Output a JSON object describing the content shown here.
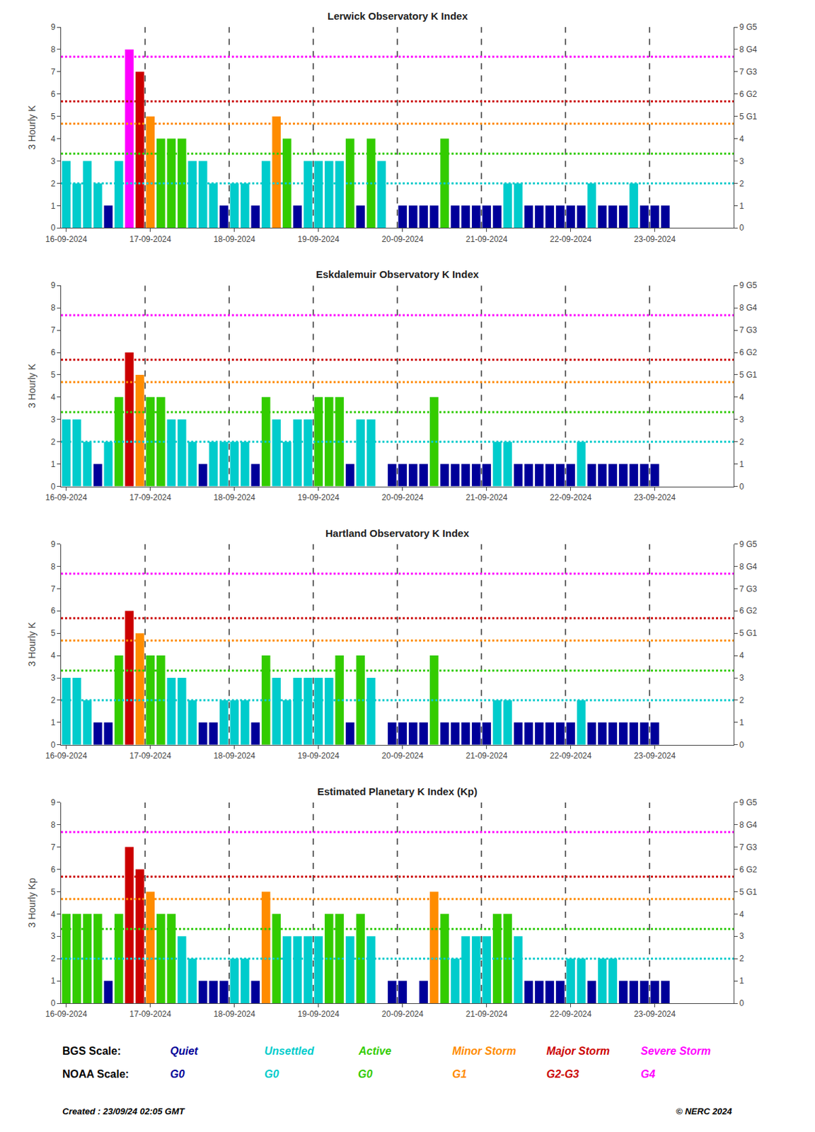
{
  "chart_data": [
    {
      "type": "bar",
      "title": "Lerwick Observatory K Index",
      "ylabel": "3 Hourly K",
      "categories": [
        "16-09-2024",
        null,
        null,
        null,
        null,
        null,
        null,
        null,
        "17-09-2024",
        null,
        null,
        null,
        null,
        null,
        null,
        null,
        "18-09-2024",
        null,
        null,
        null,
        null,
        null,
        null,
        null,
        "19-09-2024",
        null,
        null,
        null,
        null,
        null,
        null,
        null,
        "20-09-2024",
        null,
        null,
        null,
        null,
        null,
        null,
        null,
        "21-09-2024",
        null,
        null,
        null,
        null,
        null,
        null,
        null,
        "22-09-2024",
        null,
        null,
        null,
        null,
        null,
        null,
        null,
        "23-09-2024",
        null,
        null,
        null,
        null,
        null,
        null,
        null
      ],
      "values": [
        3,
        2,
        3,
        2,
        1,
        3,
        8,
        7,
        5,
        4,
        4,
        4,
        3,
        3,
        2,
        1,
        2,
        2,
        1,
        3,
        5,
        4,
        1,
        3,
        3,
        3,
        3,
        4,
        1,
        4,
        3,
        0,
        1,
        1,
        1,
        1,
        4,
        1,
        1,
        1,
        1,
        1,
        2,
        2,
        1,
        1,
        1,
        1,
        1,
        1,
        2,
        1,
        1,
        1,
        2,
        1,
        1,
        1,
        0,
        0,
        0,
        0,
        0,
        0
      ],
      "colors": [
        "#00CCCC",
        "#00CCCC",
        "#00CCCC",
        "#00CCCC",
        "#000099",
        "#00CCCC",
        "#FF00FF",
        "#CC0000",
        "#FF8C00",
        "#33CC00",
        "#33CC00",
        "#33CC00",
        "#00CCCC",
        "#00CCCC",
        "#00CCCC",
        "#000099",
        "#00CCCC",
        "#00CCCC",
        "#000099",
        "#00CCCC",
        "#FF8C00",
        "#33CC00",
        "#000099",
        "#00CCCC",
        "#00CCCC",
        "#00CCCC",
        "#00CCCC",
        "#33CC00",
        "#000099",
        "#33CC00",
        "#00CCCC",
        "#000099",
        "#000099",
        "#000099",
        "#000099",
        "#000099",
        "#33CC00",
        "#000099",
        "#000099",
        "#000099",
        "#000099",
        "#000099",
        "#00CCCC",
        "#00CCCC",
        "#000099",
        "#000099",
        "#000099",
        "#000099",
        "#000099",
        "#000099",
        "#00CCCC",
        "#000099",
        "#000099",
        "#000099",
        "#00CCCC",
        "#000099",
        "#000099",
        "#000099",
        "#000099",
        "#000099",
        "#000099",
        "#000099",
        "#000099",
        "#000099"
      ],
      "ylim": [
        0,
        9
      ],
      "yticks": [
        0,
        1,
        2,
        3,
        4,
        5,
        6,
        7,
        8,
        9
      ],
      "y2lim": [
        0,
        9
      ],
      "y2ticks": [
        0,
        1,
        2,
        3,
        4,
        {
          "value": 5,
          "label": "5 G1"
        },
        {
          "value": 6,
          "label": "6 G2"
        },
        {
          "value": 7,
          "label": "7 G3"
        },
        {
          "value": 8,
          "label": "8 G4"
        },
        {
          "value": 9,
          "label": "9 G5"
        }
      ],
      "hlines": [
        {
          "value": 7.67,
          "color": "#FF00FF"
        },
        {
          "value": 5.67,
          "color": "#CC0000"
        },
        {
          "value": 4.67,
          "color": "#FF8C00"
        },
        {
          "value": 3.33,
          "color": "#33CC00"
        },
        {
          "value": 2.0,
          "color": "#00CCCC"
        }
      ],
      "grid": false
    },
    {
      "type": "bar",
      "title": "Eskdalemuir Observatory K Index",
      "ylabel": "3 Hourly K",
      "categories": [
        "16-09-2024",
        null,
        null,
        null,
        null,
        null,
        null,
        null,
        "17-09-2024",
        null,
        null,
        null,
        null,
        null,
        null,
        null,
        "18-09-2024",
        null,
        null,
        null,
        null,
        null,
        null,
        null,
        "19-09-2024",
        null,
        null,
        null,
        null,
        null,
        null,
        null,
        "20-09-2024",
        null,
        null,
        null,
        null,
        null,
        null,
        null,
        "21-09-2024",
        null,
        null,
        null,
        null,
        null,
        null,
        null,
        "22-09-2024",
        null,
        null,
        null,
        null,
        null,
        null,
        null,
        "23-09-2024",
        null,
        null,
        null,
        null,
        null,
        null,
        null
      ],
      "values": [
        3,
        3,
        2,
        1,
        2,
        4,
        6,
        5,
        4,
        4,
        3,
        3,
        2,
        1,
        2,
        2,
        2,
        2,
        1,
        4,
        3,
        2,
        3,
        3,
        4,
        4,
        4,
        1,
        3,
        3,
        0,
        1,
        1,
        1,
        1,
        4,
        1,
        1,
        1,
        1,
        1,
        2,
        2,
        1,
        1,
        1,
        1,
        1,
        1,
        2,
        1,
        1,
        1,
        1,
        1,
        1,
        1,
        0,
        0,
        0,
        0,
        0,
        0,
        0
      ],
      "colors": [
        "#00CCCC",
        "#00CCCC",
        "#00CCCC",
        "#000099",
        "#00CCCC",
        "#33CC00",
        "#CC0000",
        "#FF8C00",
        "#33CC00",
        "#33CC00",
        "#00CCCC",
        "#00CCCC",
        "#00CCCC",
        "#000099",
        "#00CCCC",
        "#00CCCC",
        "#00CCCC",
        "#00CCCC",
        "#000099",
        "#33CC00",
        "#00CCCC",
        "#00CCCC",
        "#00CCCC",
        "#00CCCC",
        "#33CC00",
        "#33CC00",
        "#33CC00",
        "#000099",
        "#00CCCC",
        "#00CCCC",
        "#000099",
        "#000099",
        "#000099",
        "#000099",
        "#000099",
        "#33CC00",
        "#000099",
        "#000099",
        "#000099",
        "#000099",
        "#000099",
        "#00CCCC",
        "#00CCCC",
        "#000099",
        "#000099",
        "#000099",
        "#000099",
        "#000099",
        "#000099",
        "#00CCCC",
        "#000099",
        "#000099",
        "#000099",
        "#000099",
        "#000099",
        "#000099",
        "#000099",
        "#000099",
        "#000099",
        "#000099",
        "#000099",
        "#000099",
        "#000099",
        "#000099"
      ],
      "ylim": [
        0,
        9
      ],
      "yticks": [
        0,
        1,
        2,
        3,
        4,
        5,
        6,
        7,
        8,
        9
      ],
      "y2lim": [
        0,
        9
      ],
      "y2ticks": [
        0,
        1,
        2,
        3,
        4,
        {
          "value": 5,
          "label": "5 G1"
        },
        {
          "value": 6,
          "label": "6 G2"
        },
        {
          "value": 7,
          "label": "7 G3"
        },
        {
          "value": 8,
          "label": "8 G4"
        },
        {
          "value": 9,
          "label": "9 G5"
        }
      ],
      "hlines": [
        {
          "value": 7.67,
          "color": "#FF00FF"
        },
        {
          "value": 5.67,
          "color": "#CC0000"
        },
        {
          "value": 4.67,
          "color": "#FF8C00"
        },
        {
          "value": 3.33,
          "color": "#33CC00"
        },
        {
          "value": 2.0,
          "color": "#00CCCC"
        }
      ],
      "grid": false
    },
    {
      "type": "bar",
      "title": "Hartland Observatory K Index",
      "ylabel": "3 Hourly K",
      "categories": [
        "16-09-2024",
        null,
        null,
        null,
        null,
        null,
        null,
        null,
        "17-09-2024",
        null,
        null,
        null,
        null,
        null,
        null,
        null,
        "18-09-2024",
        null,
        null,
        null,
        null,
        null,
        null,
        null,
        "19-09-2024",
        null,
        null,
        null,
        null,
        null,
        null,
        null,
        "20-09-2024",
        null,
        null,
        null,
        null,
        null,
        null,
        null,
        "21-09-2024",
        null,
        null,
        null,
        null,
        null,
        null,
        null,
        "22-09-2024",
        null,
        null,
        null,
        null,
        null,
        null,
        null,
        "23-09-2024",
        null,
        null,
        null,
        null,
        null,
        null,
        null
      ],
      "values": [
        3,
        3,
        2,
        1,
        1,
        4,
        6,
        5,
        4,
        4,
        3,
        3,
        2,
        1,
        1,
        2,
        2,
        2,
        1,
        4,
        3,
        2,
        3,
        3,
        3,
        3,
        4,
        1,
        4,
        3,
        0,
        1,
        1,
        1,
        1,
        4,
        1,
        1,
        1,
        1,
        1,
        2,
        2,
        1,
        1,
        1,
        1,
        1,
        1,
        2,
        1,
        1,
        1,
        1,
        1,
        1,
        1,
        0,
        0,
        0,
        0,
        0,
        0,
        0
      ],
      "colors": [
        "#00CCCC",
        "#00CCCC",
        "#00CCCC",
        "#000099",
        "#000099",
        "#33CC00",
        "#CC0000",
        "#FF8C00",
        "#33CC00",
        "#33CC00",
        "#00CCCC",
        "#00CCCC",
        "#00CCCC",
        "#000099",
        "#000099",
        "#00CCCC",
        "#00CCCC",
        "#00CCCC",
        "#000099",
        "#33CC00",
        "#00CCCC",
        "#00CCCC",
        "#00CCCC",
        "#00CCCC",
        "#00CCCC",
        "#00CCCC",
        "#33CC00",
        "#000099",
        "#33CC00",
        "#00CCCC",
        "#000099",
        "#000099",
        "#000099",
        "#000099",
        "#000099",
        "#33CC00",
        "#000099",
        "#000099",
        "#000099",
        "#000099",
        "#000099",
        "#00CCCC",
        "#00CCCC",
        "#000099",
        "#000099",
        "#000099",
        "#000099",
        "#000099",
        "#000099",
        "#00CCCC",
        "#000099",
        "#000099",
        "#000099",
        "#000099",
        "#000099",
        "#000099",
        "#000099",
        "#000099",
        "#000099",
        "#000099",
        "#000099",
        "#000099",
        "#000099",
        "#000099"
      ],
      "ylim": [
        0,
        9
      ],
      "yticks": [
        0,
        1,
        2,
        3,
        4,
        5,
        6,
        7,
        8,
        9
      ],
      "y2lim": [
        0,
        9
      ],
      "y2ticks": [
        0,
        1,
        2,
        3,
        4,
        {
          "value": 5,
          "label": "5 G1"
        },
        {
          "value": 6,
          "label": "6 G2"
        },
        {
          "value": 7,
          "label": "7 G3"
        },
        {
          "value": 8,
          "label": "8 G4"
        },
        {
          "value": 9,
          "label": "9 G5"
        }
      ],
      "hlines": [
        {
          "value": 7.67,
          "color": "#FF00FF"
        },
        {
          "value": 5.67,
          "color": "#CC0000"
        },
        {
          "value": 4.67,
          "color": "#FF8C00"
        },
        {
          "value": 3.33,
          "color": "#33CC00"
        },
        {
          "value": 2.0,
          "color": "#00CCCC"
        }
      ],
      "grid": false
    },
    {
      "type": "bar",
      "title": "Estimated Planetary K Index (Kp)",
      "ylabel": "3 Hourly Kp",
      "categories": [
        "16-09-2024",
        null,
        null,
        null,
        null,
        null,
        null,
        null,
        "17-09-2024",
        null,
        null,
        null,
        null,
        null,
        null,
        null,
        "18-09-2024",
        null,
        null,
        null,
        null,
        null,
        null,
        null,
        "19-09-2024",
        null,
        null,
        null,
        null,
        null,
        null,
        null,
        "20-09-2024",
        null,
        null,
        null,
        null,
        null,
        null,
        null,
        "21-09-2024",
        null,
        null,
        null,
        null,
        null,
        null,
        null,
        "22-09-2024",
        null,
        null,
        null,
        null,
        null,
        null,
        null,
        "23-09-2024",
        null,
        null,
        null,
        null,
        null,
        null,
        null
      ],
      "values": [
        4,
        4,
        4,
        4,
        1,
        4,
        7,
        6,
        5,
        4,
        4,
        3,
        2,
        1,
        1,
        1,
        2,
        2,
        1,
        5,
        4,
        3,
        3,
        3,
        3,
        4,
        4,
        3,
        4,
        3,
        0,
        1,
        1,
        0,
        1,
        5,
        4,
        2,
        3,
        3,
        3,
        4,
        4,
        3,
        1,
        1,
        1,
        1,
        2,
        2,
        1,
        2,
        2,
        1,
        1,
        1,
        1,
        1,
        0,
        0,
        0,
        0,
        0,
        0
      ],
      "colors": [
        "#33CC00",
        "#33CC00",
        "#33CC00",
        "#33CC00",
        "#000099",
        "#33CC00",
        "#CC0000",
        "#CC0000",
        "#FF8C00",
        "#33CC00",
        "#33CC00",
        "#00CCCC",
        "#00CCCC",
        "#000099",
        "#000099",
        "#000099",
        "#00CCCC",
        "#00CCCC",
        "#000099",
        "#FF8C00",
        "#33CC00",
        "#00CCCC",
        "#00CCCC",
        "#00CCCC",
        "#00CCCC",
        "#33CC00",
        "#33CC00",
        "#00CCCC",
        "#33CC00",
        "#00CCCC",
        "#000099",
        "#000099",
        "#000099",
        "#000099",
        "#000099",
        "#FF8C00",
        "#33CC00",
        "#00CCCC",
        "#00CCCC",
        "#00CCCC",
        "#00CCCC",
        "#33CC00",
        "#33CC00",
        "#00CCCC",
        "#000099",
        "#000099",
        "#000099",
        "#000099",
        "#00CCCC",
        "#00CCCC",
        "#000099",
        "#00CCCC",
        "#00CCCC",
        "#000099",
        "#000099",
        "#000099",
        "#000099",
        "#000099",
        "#000099",
        "#000099",
        "#000099",
        "#000099",
        "#000099",
        "#000099"
      ],
      "ylim": [
        0,
        9
      ],
      "yticks": [
        0,
        1,
        2,
        3,
        4,
        5,
        6,
        7,
        8,
        9
      ],
      "y2lim": [
        0,
        9
      ],
      "y2ticks": [
        0,
        1,
        2,
        3,
        4,
        {
          "value": 5,
          "label": "5 G1"
        },
        {
          "value": 6,
          "label": "6 G2"
        },
        {
          "value": 7,
          "label": "7 G3"
        },
        {
          "value": 8,
          "label": "8 G4"
        },
        {
          "value": 9,
          "label": "9 G5"
        }
      ],
      "hlines": [
        {
          "value": 7.67,
          "color": "#FF00FF"
        },
        {
          "value": 5.67,
          "color": "#CC0000"
        },
        {
          "value": 4.67,
          "color": "#FF8C00"
        },
        {
          "value": 3.33,
          "color": "#33CC00"
        },
        {
          "value": 2.0,
          "color": "#00CCCC"
        }
      ],
      "grid": false
    }
  ],
  "scale_legend": [
    {
      "label": "BGS Scale:",
      "items": [
        {
          "label": "Quiet",
          "color": "#000099"
        },
        {
          "label": "Unsettled",
          "color": "#00CCCC"
        },
        {
          "label": "Active",
          "color": "#33CC00"
        },
        {
          "label": "Minor Storm",
          "color": "#FF8C00"
        },
        {
          "label": "Major Storm",
          "color": "#CC0000"
        },
        {
          "label": "Severe Storm",
          "color": "#FF00FF"
        }
      ]
    },
    {
      "label": "NOAA Scale:",
      "items": [
        {
          "label": "G0",
          "color": "#000099"
        },
        {
          "label": "G0",
          "color": "#00CCCC"
        },
        {
          "label": "G0",
          "color": "#33CC00"
        },
        {
          "label": "G1",
          "color": "#FF8C00"
        },
        {
          "label": "G2-G3",
          "color": "#CC0000"
        },
        {
          "label": "G4",
          "color": "#FF00FF"
        }
      ]
    }
  ],
  "footer_left": "Created : 23/09/24 02:05 GMT",
  "footer_right": "© NERC 2024"
}
